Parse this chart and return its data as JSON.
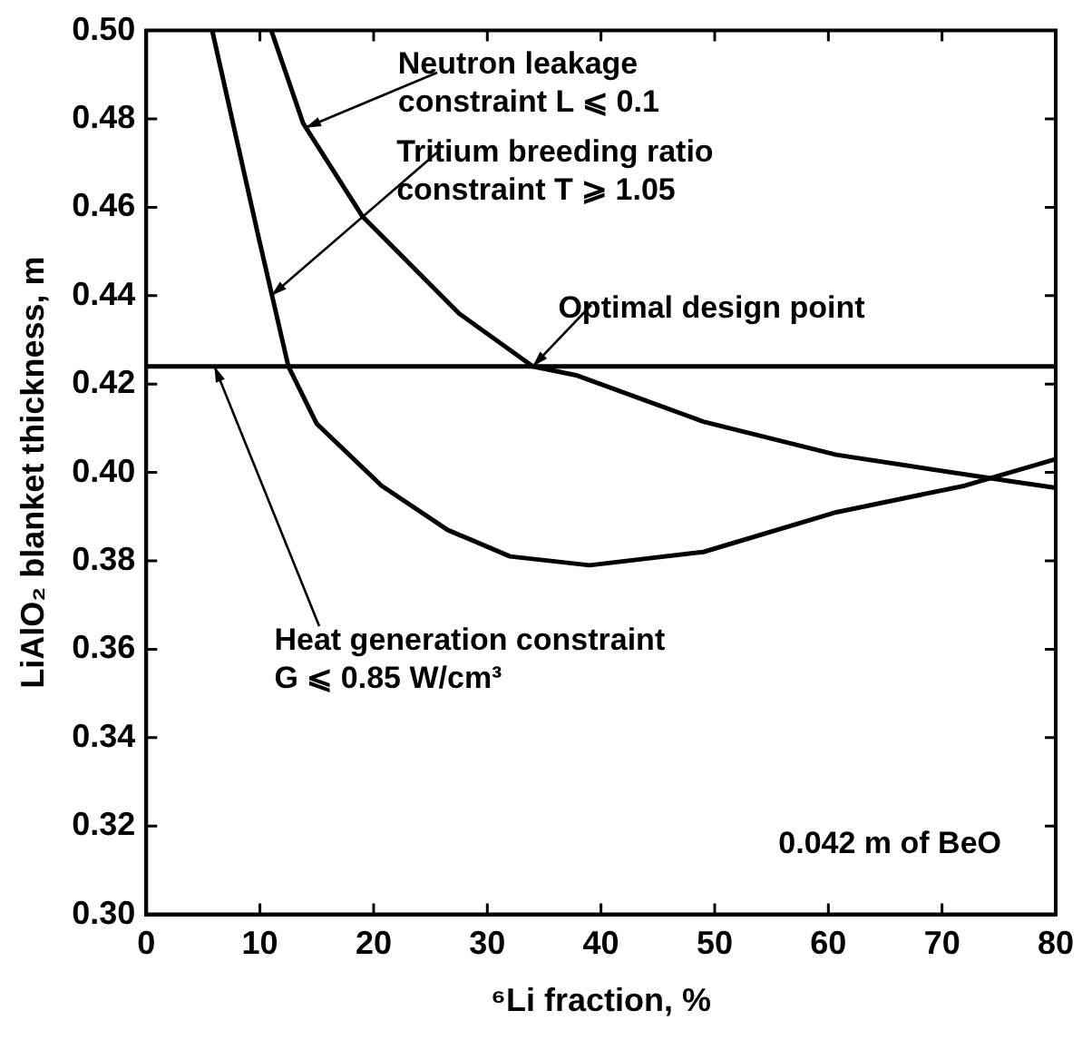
{
  "chart_data": {
    "type": "line",
    "xlabel": "⁶Li fraction, %",
    "ylabel": "LiAlO₂ blanket thickness, m",
    "xlim": [
      0,
      80
    ],
    "xticks": [
      0,
      10,
      20,
      30,
      40,
      50,
      60,
      70,
      80
    ],
    "ylim": [
      0.3,
      0.5
    ],
    "yticks": [
      {
        "value": 0.3,
        "label": "0.30"
      },
      {
        "value": 0.32,
        "label": "0.32"
      },
      {
        "value": 0.34,
        "label": "0.34"
      },
      {
        "value": 0.36,
        "label": "0.36"
      },
      {
        "value": 0.38,
        "label": "0.38"
      },
      {
        "value": 0.4,
        "label": "0.40"
      },
      {
        "value": 0.42,
        "label": "0.42"
      },
      {
        "value": 0.44,
        "label": "0.44"
      },
      {
        "value": 0.46,
        "label": "0.46"
      },
      {
        "value": 0.48,
        "label": "0.48"
      },
      {
        "value": 0.5,
        "label": "0.50"
      }
    ],
    "legend": false,
    "marker": "none",
    "series": [
      {
        "color": "#000000",
        "x": [
          11,
          13.8,
          19,
          27.5,
          34,
          37.8,
          49,
          60.7,
          76,
          80
        ],
        "values": [
          0.5,
          0.479,
          0.458,
          0.436,
          0.424,
          0.422,
          0.4115,
          0.404,
          0.398,
          0.3965
        ]
      },
      {
        "color": "#000000",
        "x": [
          5.8,
          9.9,
          12.5,
          15,
          20.7,
          26.5,
          32,
          39,
          49,
          60.7,
          72,
          80
        ],
        "values": [
          0.5,
          0.453,
          0.424,
          0.411,
          0.397,
          0.387,
          0.381,
          0.379,
          0.382,
          0.391,
          0.397,
          0.403
        ]
      },
      {
        "color": "#000000",
        "x": [
          0,
          80
        ],
        "values": [
          0.424,
          0.424
        ]
      }
    ],
    "annotations": [
      {
        "text": "Neutron leakage\nconstraint L ⩽ 0.1",
        "x": 14,
        "y": 0.478
      },
      {
        "text": "Tritium breeding ratio\nconstraint T ⩾ 1.05",
        "x": 11,
        "y": 0.44
      },
      {
        "text": "Optimal design point",
        "x": 34,
        "y": 0.424
      },
      {
        "text": "Heat generation constraint\nG ⩽ 0.85 W/cm³",
        "x": 6,
        "y": 0.424
      },
      "0.042 m of BeO"
    ]
  }
}
